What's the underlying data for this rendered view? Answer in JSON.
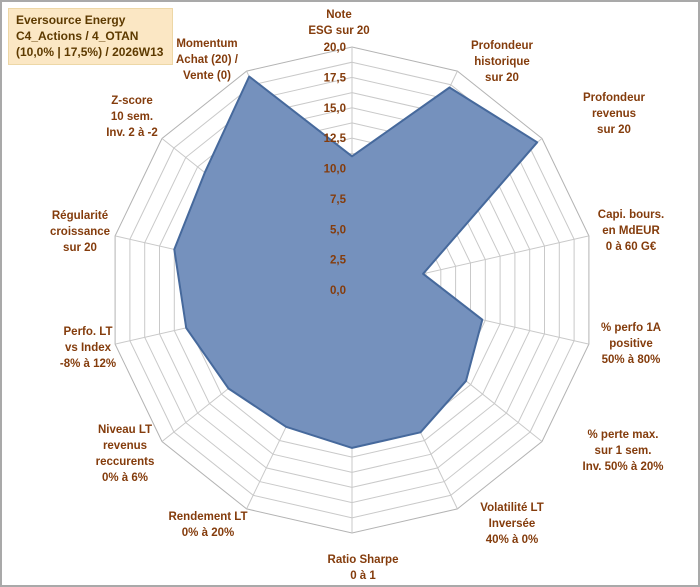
{
  "title_box": {
    "line1": "Eversource Energy",
    "line2": "C4_Actions / 4_OTAN",
    "line3": "(10,0% | 17,5%) / 2026W13"
  },
  "chart_data": {
    "type": "radar",
    "min": 0,
    "max": 20,
    "grid_step": 1.25,
    "tick_labels": [
      "0,0",
      "2,5",
      "5,0",
      "7,5",
      "10,0",
      "12,5",
      "15,0",
      "17,5",
      "20,0"
    ],
    "axes": [
      {
        "label": "Note ESG sur 20",
        "label_lines": [
          "Note",
          "ESG sur 20"
        ],
        "value": 11
      },
      {
        "label": "Profondeur historique sur 20",
        "label_lines": [
          "Profondeur",
          "historique",
          "sur 20"
        ],
        "value": 18.5
      },
      {
        "label": "Profondeur revenus sur 20",
        "label_lines": [
          "Profondeur",
          "revenus",
          "sur 20"
        ],
        "value": 19.5
      },
      {
        "label": "Capi. bours. en MdEUR 0 à 60 G€",
        "label_lines": [
          "Capi. bours.",
          "en MdEUR",
          "0 à 60 G€"
        ],
        "value": 6
      },
      {
        "label": "% perfo 1A positive 50% à 80%",
        "label_lines": [
          "% perfo 1A",
          "positive",
          "50% à 80%"
        ],
        "value": 11
      },
      {
        "label": "% perte max. sur 1 sem. Inv. 50% à 20%",
        "label_lines": [
          "% perte max.",
          "sur 1 sem.",
          "Inv. 50% à 20%"
        ],
        "value": 12
      },
      {
        "label": "Volatilité LT Inversée 40% à 0%",
        "label_lines": [
          "Volatilité LT",
          "Inversée",
          "40% à 0%"
        ],
        "value": 13
      },
      {
        "label": "Ratio Sharpe 0 à 1",
        "label_lines": [
          "Ratio Sharpe",
          "0 à 1"
        ],
        "value": 13
      },
      {
        "label": "Rendement LT 0% à 20%",
        "label_lines": [
          "Rendement LT",
          "0% à 20%"
        ],
        "value": 12.5
      },
      {
        "label": "Niveau LT revenus reccurents 0% à 6%",
        "label_lines": [
          "Niveau LT",
          "revenus",
          "reccurents",
          "0% à 6%"
        ],
        "value": 13
      },
      {
        "label": "Perfo. LT vs Index -8% à 12%",
        "label_lines": [
          "Perfo. LT",
          "vs Index",
          "-8% à 12%"
        ],
        "value": 14
      },
      {
        "label": "Régularité croissance sur 20",
        "label_lines": [
          "Régularité",
          "croissance",
          "sur 20"
        ],
        "value": 15
      },
      {
        "label": "Z-score 10 sem. Inv. 2 à -2",
        "label_lines": [
          "Z-score",
          "10 sem.",
          "Inv. 2 à -2"
        ],
        "value": 15.5
      },
      {
        "label": "Momentum Achat (20) / Vente (0)",
        "label_lines": [
          "Momentum",
          "Achat (20) /",
          "Vente (0)"
        ],
        "value": 19.5
      }
    ],
    "colors": {
      "fill": "#7591bd",
      "stroke": "#46699c",
      "grid": "#c9c9c9",
      "grid_outer": "#b3b3b3",
      "label": "#843c0c"
    },
    "legend": null,
    "grid": true
  }
}
